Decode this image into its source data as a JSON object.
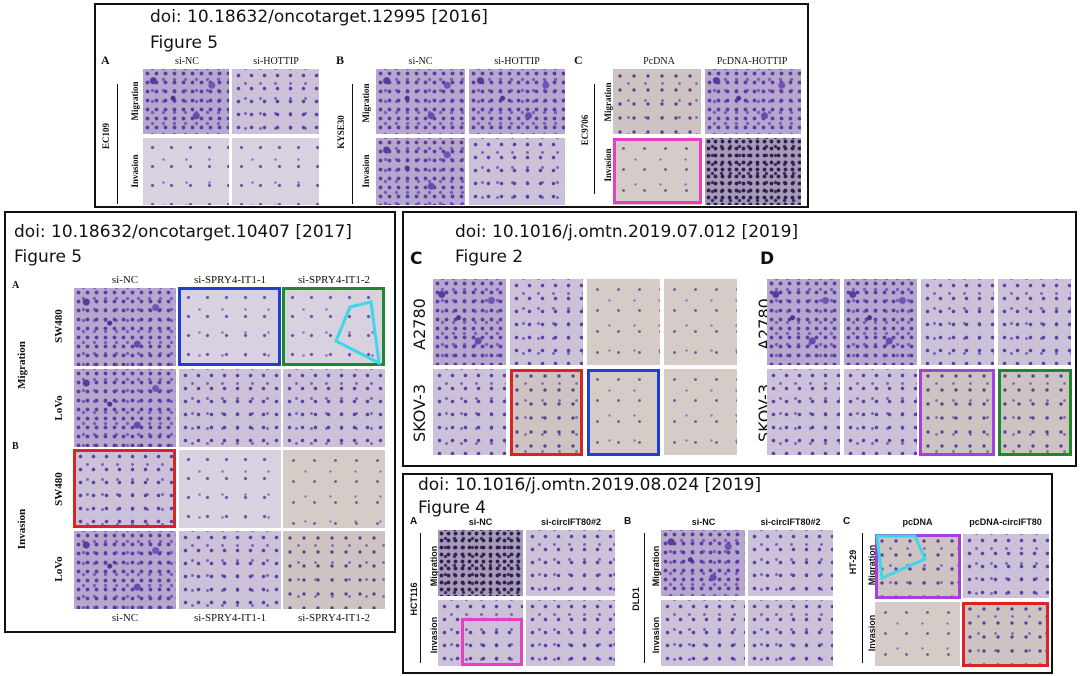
{
  "colors": {
    "magenta": "#e83ec4",
    "blue": "#1e3fd0",
    "green": "#1b8a2a",
    "cyan": "#3fd6e6",
    "red": "#d92424",
    "purple": "#a63fe0"
  },
  "panel1": {
    "doi": "doi: 10.18632/oncotarget.12995 [2016]",
    "figure": "Figure 5",
    "sub_a": "A",
    "sub_b": "B",
    "sub_c": "C",
    "a_cols": [
      "si-NC",
      "si-HOTTIP"
    ],
    "b_cols": [
      "si-NC",
      "si-HOTTIP"
    ],
    "c_cols": [
      "PcDNA",
      "PcDNA-HOTTIP"
    ],
    "a_cell": "EC109",
    "b_cell": "KYSE30",
    "c_cell": "EC9706",
    "row_migration": "Migration",
    "row_invasion": "Invasion"
  },
  "panel2": {
    "doi": "doi: 10.18632/oncotarget.10407 [2017]",
    "figure": "Figure 5",
    "sub_a": "A",
    "sub_b": "B",
    "cols": [
      "si-NC",
      "si-SPRY4-IT1-1",
      "si-SPRY4-IT1-2"
    ],
    "bottom_cols": [
      "si-NC",
      "si-SPRY4-IT1-1",
      "si-SPRY4-IT1-2"
    ],
    "group_migration": "Migration",
    "group_invasion": "Invasion",
    "row_sw480": "SW480",
    "row_lovo": "LoVo"
  },
  "panel3": {
    "doi": "doi: 10.1016/j.omtn.2019.07.012 [2019]",
    "figure": "Figure 2",
    "sub_c": "C",
    "sub_d": "D",
    "row_a2780": "A2780",
    "row_skov3": "SKOV-3"
  },
  "panel4": {
    "doi": "doi: 10.1016/j.omtn.2019.08.024 [2019]",
    "figure": "Figure 4",
    "sub_a": "A",
    "sub_b": "B",
    "sub_c": "C",
    "a_cols": [
      "si-NC",
      "si-circIFT80#2"
    ],
    "b_cols": [
      "si-NC",
      "si-circIFT80#2"
    ],
    "c_cols": [
      "pcDNA",
      "pcDNA-circIFT80"
    ],
    "a_cell": "HCT116",
    "b_cell": "DLD1",
    "c_cell": "HT-29",
    "row_migration": "Migration",
    "row_invasion": "Invasion"
  }
}
